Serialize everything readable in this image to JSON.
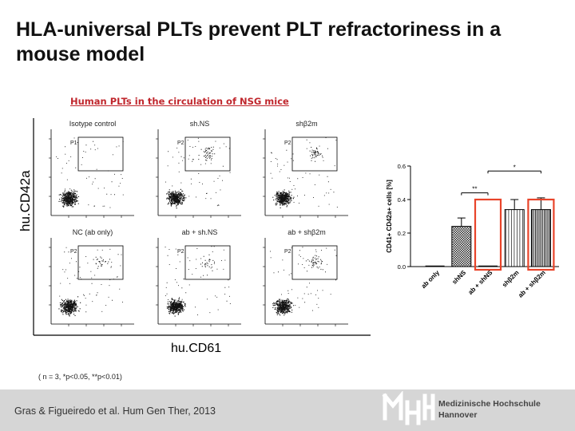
{
  "slide": {
    "title": "HLA-universal PLTs prevent PLT refractoriness in a mouse model",
    "subtitle": "Human PLTs in the circulation of NSG mice",
    "y_axis_label": "hu.CD42a",
    "x_axis_label": "hu.CD61",
    "footnote": "( n = 3, *p<0.05, **p<0.01)",
    "citation": "Gras & Figueiredo et al. Hum Gen Ther, 2013"
  },
  "logo": {
    "lines": [
      "Medizinische Hochschule",
      "Hannover"
    ]
  },
  "facs_panels": [
    {
      "title": "Isotype control",
      "gate": "P1"
    },
    {
      "title": "sh.NS",
      "gate": "P2"
    },
    {
      "title": "shβ2m",
      "gate": "P2"
    },
    {
      "title": "NC (ab only)",
      "gate": "P2"
    },
    {
      "title": "ab + sh.NS",
      "gate": "P2"
    },
    {
      "title": "ab + shβ2m",
      "gate": "P2"
    }
  ],
  "colors": {
    "title": "#111111",
    "subtitle": "#c0272d",
    "highlight": "#e8442a",
    "footer": "#d6d6d6"
  },
  "chart_data": {
    "type": "bar",
    "categories": [
      "ab only",
      "shNS",
      "ab + shNS",
      "shβ2m",
      "ab + shβ2m"
    ],
    "values": [
      0.0,
      0.24,
      0.0,
      0.34,
      0.34
    ],
    "errors": [
      0.0,
      0.05,
      0.0,
      0.06,
      0.07
    ],
    "patterns": [
      "none",
      "checker",
      "none",
      "vertical-lines",
      "dense-vertical-lines"
    ],
    "highlighted": [
      "ab + shNS",
      "ab + shβ2m"
    ],
    "ylabel": "CD41+ CD42a+ cells [%]",
    "ylim": [
      0.0,
      0.6
    ],
    "yticks": [
      "0.0",
      "0.2",
      "0.4",
      "0.6"
    ],
    "significance": [
      {
        "from": "shNS",
        "to": "ab + shNS",
        "label": "**"
      },
      {
        "from": "ab + shNS",
        "to": "ab + shβ2m",
        "label": "*"
      }
    ]
  }
}
